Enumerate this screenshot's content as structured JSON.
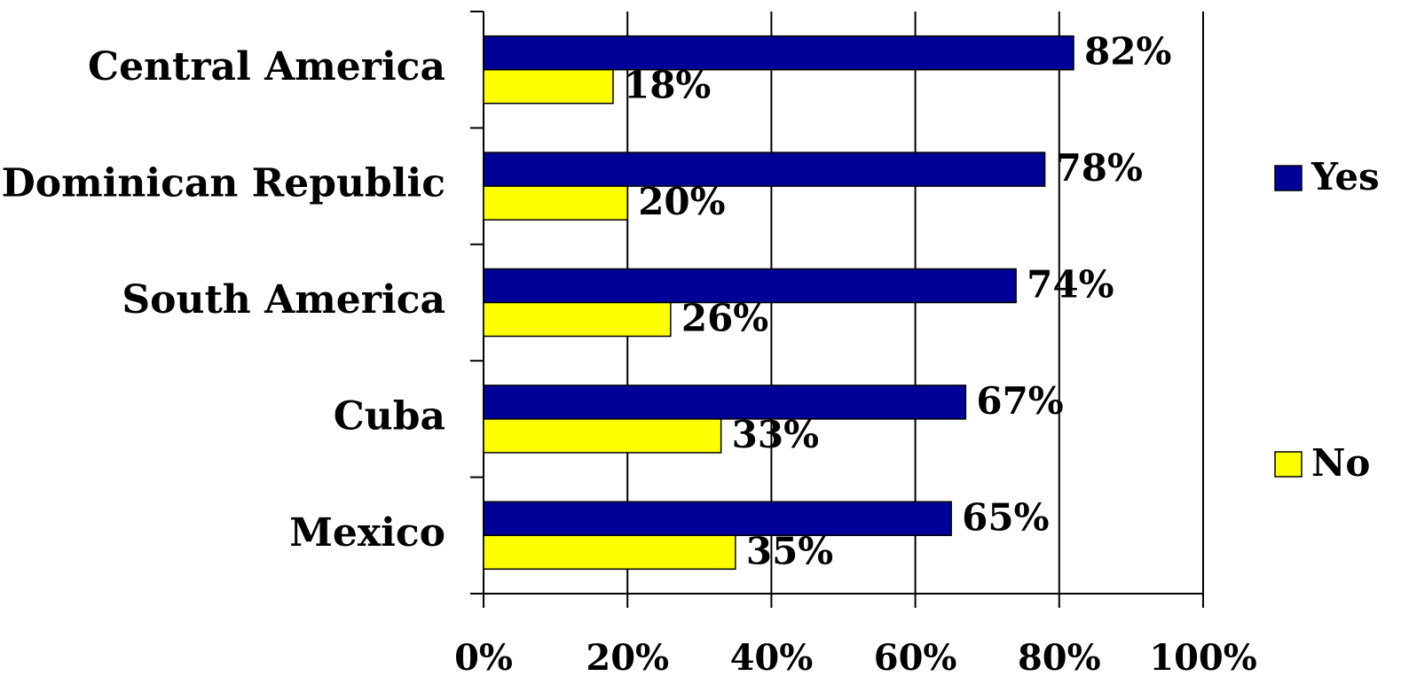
{
  "chart_data": {
    "type": "barh",
    "categories": [
      "Central America",
      "Dominican Republic",
      "South America",
      "Cuba",
      "Mexico"
    ],
    "series": [
      {
        "name": "Yes",
        "color": "#000099",
        "values": [
          82,
          78,
          74,
          67,
          65
        ],
        "value_labels": [
          "82%",
          "78%",
          "74%",
          "67%",
          "65%"
        ]
      },
      {
        "name": "No",
        "color": "#ffff00",
        "values": [
          18,
          20,
          26,
          33,
          35
        ],
        "value_labels": [
          "18%",
          "20%",
          "26%",
          "33%",
          "35%"
        ]
      }
    ],
    "xlim": [
      0,
      100
    ],
    "xticks": [
      {
        "value": 0,
        "label": "0%"
      },
      {
        "value": 20,
        "label": "20%"
      },
      {
        "value": 40,
        "label": "40%"
      },
      {
        "value": 60,
        "label": "60%"
      },
      {
        "value": 80,
        "label": "80%"
      },
      {
        "value": 100,
        "label": "100%"
      }
    ],
    "grid": true,
    "legend": "right"
  }
}
